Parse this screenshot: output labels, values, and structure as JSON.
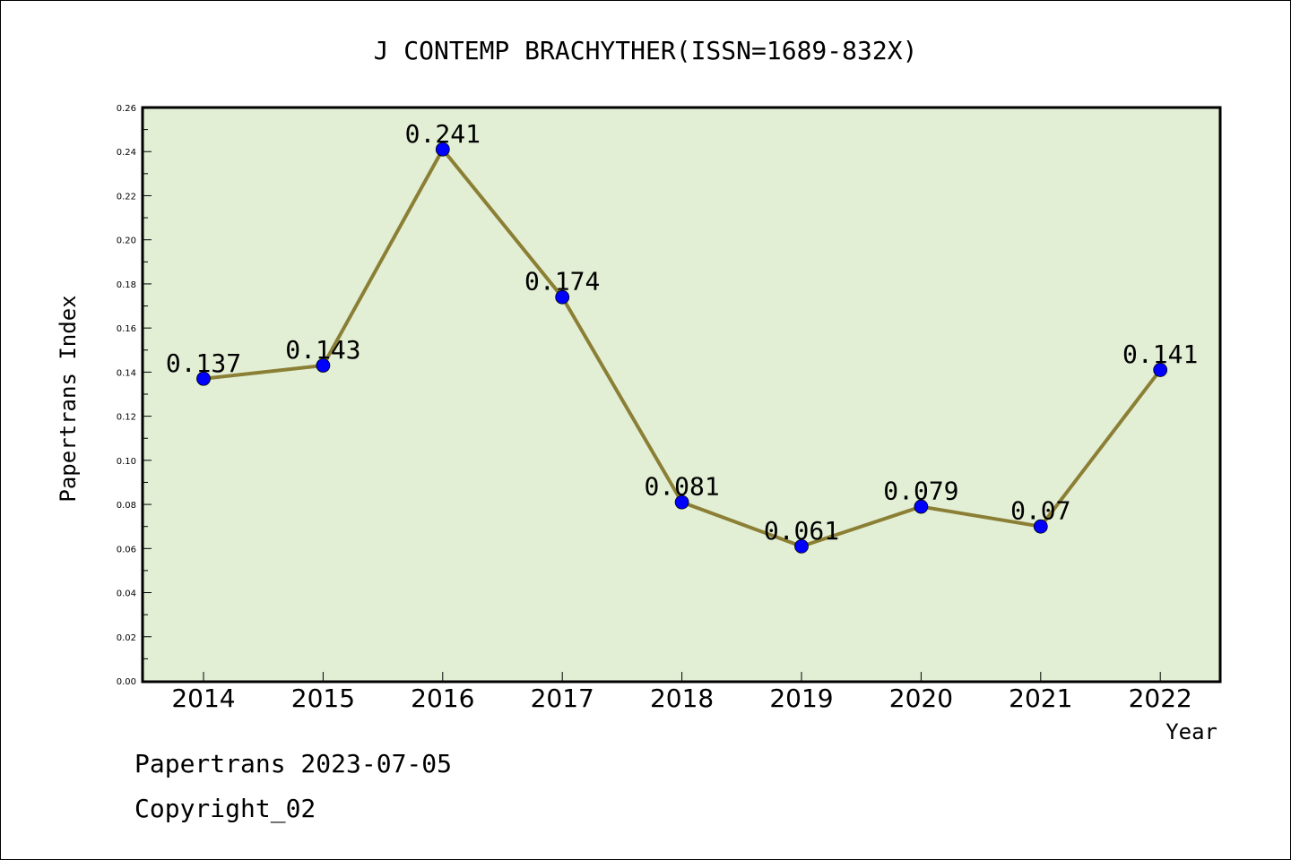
{
  "chart_data": {
    "type": "line",
    "title": "J CONTEMP BRACHYTHER(ISSN=1689-832X)",
    "xlabel": "Year",
    "ylabel": "Papertrans Index",
    "categories": [
      "2014",
      "2015",
      "2016",
      "2017",
      "2018",
      "2019",
      "2020",
      "2021",
      "2022"
    ],
    "series": [
      {
        "values": [
          0.137,
          0.143,
          0.241,
          0.174,
          0.081,
          0.061,
          0.079,
          0.07,
          0.141
        ],
        "labels": [
          "0.137",
          "0.143",
          "0.241",
          "0.174",
          "0.081",
          "0.061",
          "0.079",
          "0.07",
          "0.141"
        ]
      }
    ],
    "ylim": [
      0,
      0.26
    ],
    "yticks": [
      "0.00",
      "0.02",
      "0.04",
      "0.06",
      "0.08",
      "0.10",
      "0.12",
      "0.14",
      "0.16",
      "0.18",
      "0.20",
      "0.22",
      "0.24",
      "0.26"
    ],
    "grid": false,
    "legend": "none"
  },
  "colors": {
    "plot_background": "#e2efd4",
    "line": "#8b7f35",
    "marker": "#0000ff"
  },
  "footer": {
    "line1": "Papertrans 2023-07-05",
    "line2": "Copyright_02"
  }
}
